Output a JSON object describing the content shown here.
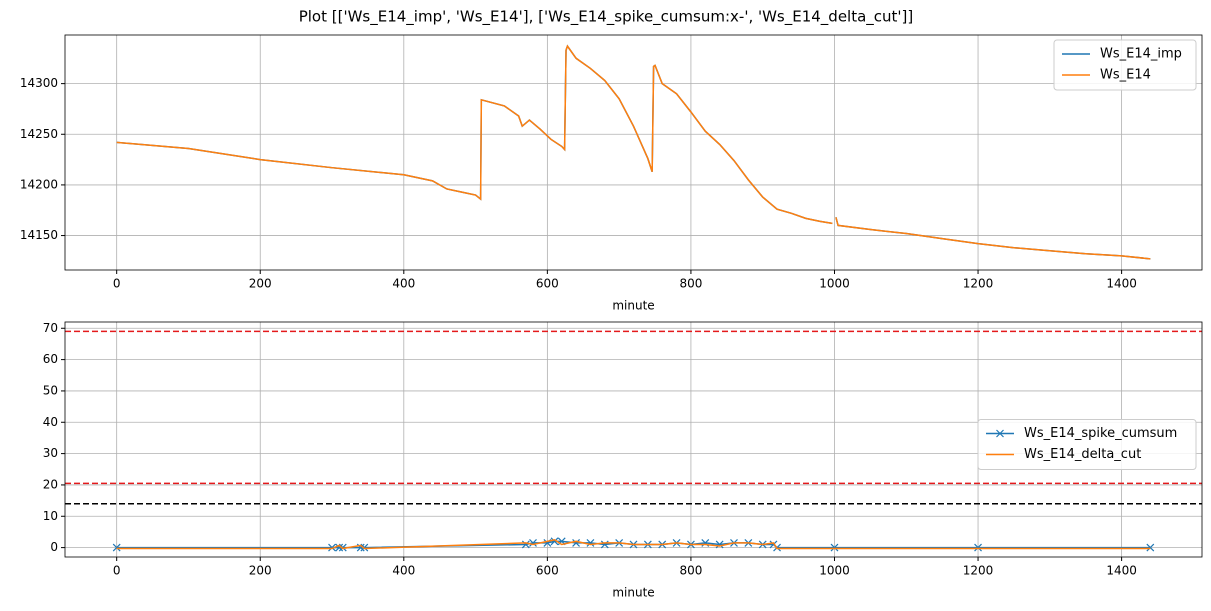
{
  "title": "Plot [['Ws_E14_imp', 'Ws_E14'], ['Ws_E14_spike_cumsum:x-', 'Ws_E14_delta_cut']]",
  "chart_data": [
    {
      "type": "line",
      "xlabel": "minute",
      "x": [
        0,
        100,
        200,
        300,
        400,
        440,
        460,
        480,
        500,
        507,
        508,
        540,
        560,
        565,
        575,
        590,
        605,
        620,
        624,
        626,
        628,
        640,
        660,
        680,
        700,
        720,
        740,
        746,
        748,
        750,
        760,
        780,
        800,
        820,
        840,
        860,
        880,
        900,
        920,
        940,
        960,
        980,
        997,
        999,
        1002,
        1005,
        1050,
        1100,
        1150,
        1200,
        1250,
        1300,
        1350,
        1400,
        1440
      ],
      "series": [
        {
          "name": "Ws_E14_imp",
          "color": "#1f77b4",
          "values": [
            14242,
            14236,
            14225,
            14217,
            14210,
            14204,
            14196,
            14193,
            14190,
            14186,
            14284,
            14278,
            14268,
            14258,
            14264,
            14255,
            14245,
            14238,
            14235,
            14333,
            14337,
            14325,
            14315,
            14303,
            14285,
            14258,
            14226,
            14213,
            14317,
            14318,
            14300,
            14290,
            14272,
            14253,
            14240,
            14224,
            14205,
            14188,
            14176,
            14172,
            14167,
            14164,
            14162,
            null,
            14168,
            14160,
            14156,
            14152,
            14147,
            14142,
            14138,
            14135,
            14132,
            14130,
            14127
          ]
        },
        {
          "name": "Ws_E14",
          "color": "#ff7f0e",
          "values": [
            14242,
            14236,
            14225,
            14217,
            14210,
            14204,
            14196,
            14193,
            14190,
            14186,
            14284,
            14278,
            14268,
            14258,
            14264,
            14255,
            14245,
            14238,
            14235,
            14333,
            14337,
            14325,
            14315,
            14303,
            14285,
            14258,
            14226,
            14213,
            14317,
            14318,
            14300,
            14290,
            14272,
            14253,
            14240,
            14224,
            14205,
            14188,
            14176,
            14172,
            14167,
            14164,
            14162,
            null,
            14168,
            14160,
            14156,
            14152,
            14147,
            14142,
            14138,
            14135,
            14132,
            14130,
            14127
          ]
        }
      ],
      "xlim": [
        -72,
        1512
      ],
      "ylim": [
        14116,
        14348
      ],
      "xticks": [
        0,
        200,
        400,
        600,
        800,
        1000,
        1200,
        1400
      ],
      "yticks": [
        14150,
        14200,
        14250,
        14300
      ],
      "grid": true,
      "legend": "upper right"
    },
    {
      "type": "line",
      "xlabel": "minute",
      "x": [
        0,
        300,
        310,
        315,
        340,
        345,
        570,
        580,
        600,
        610,
        620,
        640,
        660,
        680,
        700,
        720,
        740,
        760,
        780,
        800,
        820,
        840,
        860,
        880,
        900,
        915,
        920,
        1000,
        1200,
        1440
      ],
      "series": [
        {
          "name": "Ws_E14_spike_cumsum",
          "color": "#1f77b4",
          "marker": "x",
          "values": [
            0,
            0,
            0,
            0,
            0,
            0,
            1,
            1.5,
            1.5,
            2,
            2,
            1.5,
            1.5,
            1,
            1.5,
            1,
            1,
            1,
            1.5,
            1,
            1.5,
            1,
            1.5,
            1.5,
            1,
            1,
            0,
            0,
            0,
            0
          ]
        },
        {
          "name": "Ws_E14_delta_cut",
          "color": "#ff7f0e",
          "values": [
            -0.3,
            -0.3,
            0.7,
            -0.3,
            0.7,
            -0.3,
            1.5,
            1,
            2,
            2.5,
            1,
            2,
            1,
            1.5,
            1.5,
            1,
            1,
            1,
            1.5,
            1,
            1,
            0.5,
            1.5,
            1.5,
            1,
            1.5,
            -0.3,
            -0.3,
            -0.3,
            -0.3
          ]
        }
      ],
      "hlines": [
        {
          "value": 69,
          "color": "#e41a1c"
        },
        {
          "value": 20.5,
          "color": "#e41a1c"
        },
        {
          "value": 14,
          "color": "#000000"
        }
      ],
      "xlim": [
        -72,
        1512
      ],
      "ylim": [
        -3,
        72
      ],
      "xticks": [
        0,
        200,
        400,
        600,
        800,
        1000,
        1200,
        1400
      ],
      "yticks": [
        0,
        10,
        20,
        30,
        40,
        50,
        60,
        70
      ],
      "grid": true,
      "legend": "center right"
    }
  ]
}
